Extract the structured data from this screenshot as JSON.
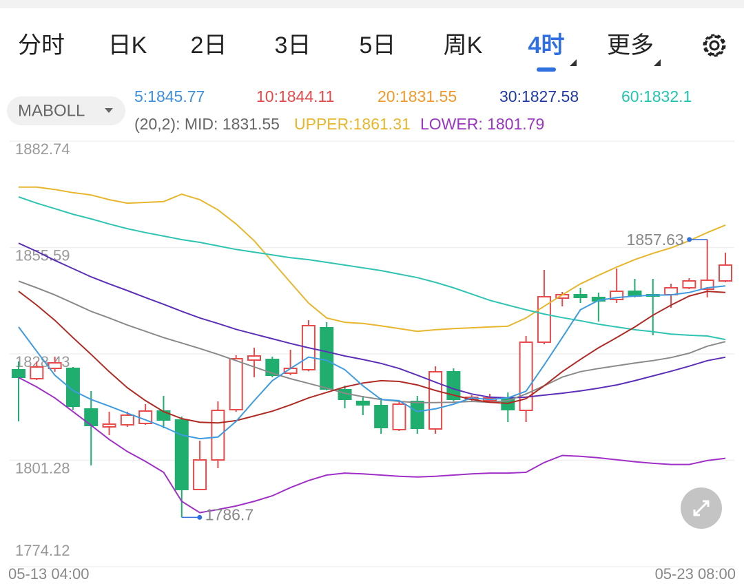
{
  "tabs": [
    "分时",
    "日K",
    "2日",
    "3日",
    "5日",
    "周K",
    "4时",
    "更多"
  ],
  "selected_tab": 6,
  "indicator_menu": "MABOLL",
  "ma_legend": [
    {
      "text": "5:1845.77",
      "color": "#3d8fdc"
    },
    {
      "text": "10:1844.11",
      "color": "#e04a4a"
    },
    {
      "text": "20:1831.55",
      "color": "#f0982a"
    },
    {
      "text": "30:1827.58",
      "color": "#1f3aa6"
    },
    {
      "text": "60:1832.1",
      "color": "#22c4b0"
    }
  ],
  "boll_legend": [
    {
      "text": "(20,2): MID: 1831.55",
      "color": "#666666"
    },
    {
      "text": "UPPER:1861.31",
      "color": "#e8b52c"
    },
    {
      "text": "LOWER: 1801.79",
      "color": "#9b35c4"
    }
  ],
  "chart_data": {
    "type": "candlestick",
    "categories": [
      "05-13 04:00",
      null,
      null,
      null,
      null,
      null,
      null,
      null,
      null,
      null,
      null,
      null,
      null,
      null,
      null,
      null,
      null,
      null,
      null,
      null,
      null,
      null,
      null,
      null,
      null,
      null,
      null,
      null,
      null,
      null,
      null,
      null,
      null,
      null,
      null,
      null,
      null,
      null,
      null,
      "05-23 08:00"
    ],
    "open": [
      1824.39,
      1822.1,
      1824.74,
      1824.74,
      1814.37,
      1809.8,
      1810.33,
      1810.68,
      1813.84,
      1811.56,
      1793.81,
      1801.36,
      1814.19,
      1826.85,
      1827.02,
      1823.51,
      1824.39,
      1835.11,
      1819.29,
      1816.3,
      1815.25,
      1809.1,
      1816.3,
      1809.27,
      1823.86,
      1816.83,
      1816.48,
      1817.18,
      1814.02,
      1831.42,
      1842.67,
      1843.55,
      1842.84,
      1842.32,
      1844.42,
      1843.55,
      1843.55,
      1845.3,
      1844.95,
      1847.06
    ],
    "high": [
      1826.5,
      1826.5,
      1827.73,
      1825.09,
      1818.94,
      1813.67,
      1813.67,
      1815.6,
      1817.71,
      1812.44,
      1806.28,
      1816.3,
      1828.08,
      1830.01,
      1827.73,
      1829.49,
      1837.04,
      1836.52,
      1820.35,
      1817.71,
      1817.18,
      1816.48,
      1817.71,
      1825.27,
      1824.74,
      1817.89,
      1818.24,
      1818.59,
      1833.0,
      1849.87,
      1844.25,
      1845.3,
      1844.07,
      1850.22,
      1847.59,
      1847.59,
      1846.36,
      1847.76,
      1857.63,
      1854.27
    ],
    "low": [
      1811.21,
      1821.75,
      1823.86,
      1814.19,
      1799.96,
      1807.69,
      1809.8,
      1810.33,
      1809.45,
      1786.7,
      1793.63,
      1799.25,
      1813.67,
      1822.45,
      1822.45,
      1822.98,
      1824.0,
      1819.11,
      1814.55,
      1812.79,
      1808.04,
      1808.75,
      1808.04,
      1808.04,
      1816.3,
      1816.48,
      1815.95,
      1811.03,
      1811.03,
      1830.89,
      1840.56,
      1841.44,
      1836.69,
      1841.44,
      1842.84,
      1833.18,
      1840.21,
      1844.95,
      1842.84,
      1846.71
    ],
    "close": [
      1822.45,
      1825.09,
      1826.15,
      1815.07,
      1810.15,
      1810.5,
      1812.79,
      1813.84,
      1811.56,
      1793.81,
      1801.36,
      1814.02,
      1827.2,
      1827.9,
      1822.98,
      1824.74,
      1835.64,
      1819.47,
      1816.83,
      1815.42,
      1809.62,
      1815.6,
      1809.45,
      1823.86,
      1816.83,
      1817.36,
      1817.18,
      1814.19,
      1831.42,
      1843.02,
      1843.55,
      1842.84,
      1841.96,
      1844.42,
      1843.19,
      1843.19,
      1845.3,
      1847.06,
      1847.24,
      1851.1
    ],
    "up_color": "#e84a4a",
    "down_color": "#1fae6e",
    "series": [
      {
        "color": "#e8b52c",
        "values": [
          1871.0,
          1871.0,
          1870.4,
          1869.6,
          1869.0,
          1867.8,
          1866.9,
          1867.1,
          1867.3,
          1869.2,
          1867.8,
          1865.2,
          1861.6,
          1857.3,
          1852.0,
          1846.7,
          1841.4,
          1837.6,
          1836.5,
          1836.2,
          1835.6,
          1834.9,
          1834.2,
          1834.6,
          1834.9,
          1835.1,
          1835.3,
          1835.5,
          1837.6,
          1840.6,
          1843.5,
          1846.3,
          1848.5,
          1850.6,
          1852.5,
          1854.1,
          1855.5,
          1857.3,
          1859.4,
          1861.31
        ]
      },
      {
        "color": "#2fc4b2",
        "values": [
          1868.5,
          1866.9,
          1865.5,
          1864.1,
          1862.9,
          1861.6,
          1860.4,
          1859.4,
          1858.5,
          1857.6,
          1856.9,
          1856.0,
          1855.1,
          1854.4,
          1853.7,
          1853.0,
          1852.5,
          1851.8,
          1851.1,
          1850.4,
          1849.7,
          1848.8,
          1847.9,
          1846.7,
          1845.3,
          1843.7,
          1842.1,
          1840.9,
          1839.7,
          1838.6,
          1837.7,
          1836.9,
          1836.0,
          1835.3,
          1834.6,
          1834.1,
          1833.5,
          1833.2,
          1833.0,
          1832.1
        ]
      },
      {
        "color": "#5b2fb8",
        "values": [
          1856.7,
          1854.6,
          1852.3,
          1850.2,
          1848.1,
          1846.3,
          1844.6,
          1842.8,
          1841.1,
          1839.3,
          1837.6,
          1836.2,
          1834.7,
          1833.5,
          1832.3,
          1831.1,
          1830.0,
          1829.0,
          1827.9,
          1827.0,
          1826.0,
          1824.7,
          1823.0,
          1821.2,
          1819.5,
          1818.2,
          1817.4,
          1817.2,
          1817.4,
          1817.9,
          1818.4,
          1819.0,
          1819.7,
          1820.5,
          1821.6,
          1822.8,
          1824.0,
          1825.3,
          1826.7,
          1827.58
        ]
      },
      {
        "color": "#8a8a8a",
        "values": [
          1847.0,
          1845.3,
          1843.5,
          1841.4,
          1839.3,
          1837.6,
          1835.8,
          1834.2,
          1832.6,
          1831.2,
          1829.8,
          1828.3,
          1826.7,
          1825.1,
          1823.5,
          1822.1,
          1820.9,
          1819.7,
          1818.4,
          1817.5,
          1816.8,
          1816.3,
          1816.0,
          1816.0,
          1816.1,
          1816.3,
          1816.1,
          1816.5,
          1818.2,
          1820.3,
          1822.5,
          1823.9,
          1824.7,
          1825.4,
          1826.1,
          1826.7,
          1827.5,
          1828.6,
          1830.4,
          1831.55
        ]
      },
      {
        "color": "#b02a24",
        "values": [
          1844.4,
          1840.9,
          1837.0,
          1832.6,
          1828.3,
          1823.9,
          1819.8,
          1816.5,
          1813.7,
          1811.9,
          1811.0,
          1810.8,
          1811.4,
          1812.6,
          1813.8,
          1815.4,
          1817.2,
          1818.6,
          1820.0,
          1821.0,
          1821.6,
          1821.4,
          1820.5,
          1819.1,
          1817.9,
          1816.8,
          1816.1,
          1815.8,
          1817.0,
          1820.3,
          1823.9,
          1827.0,
          1830.0,
          1832.6,
          1835.3,
          1838.3,
          1840.9,
          1843.2,
          1844.4,
          1844.11
        ]
      },
      {
        "color": "#3d9be0",
        "values": [
          1835.3,
          1829.1,
          1823.0,
          1819.1,
          1816.8,
          1815.1,
          1813.3,
          1811.6,
          1809.8,
          1807.7,
          1806.8,
          1807.2,
          1811.2,
          1816.5,
          1821.6,
          1824.7,
          1827.6,
          1826.8,
          1824.4,
          1820.3,
          1816.8,
          1816.5,
          1813.7,
          1814.4,
          1815.6,
          1817.2,
          1816.8,
          1817.2,
          1818.9,
          1825.6,
          1832.6,
          1839.7,
          1842.1,
          1842.8,
          1843.2,
          1843.4,
          1843.5,
          1844.1,
          1845.3,
          1845.77
        ]
      },
      {
        "color": "#a02fc8",
        "values": [
          1822.4,
          1820.0,
          1817.2,
          1813.7,
          1810.2,
          1806.6,
          1803.5,
          1801.0,
          1798.2,
          1790.8,
          1787.9,
          1788.7,
          1789.6,
          1790.8,
          1792.2,
          1794.3,
          1796.1,
          1797.5,
          1798.0,
          1797.8,
          1797.5,
          1797.2,
          1797.0,
          1797.2,
          1797.5,
          1797.8,
          1798.0,
          1798.0,
          1798.2,
          1800.7,
          1802.5,
          1802.3,
          1801.9,
          1801.4,
          1800.9,
          1800.5,
          1800.2,
          1800.2,
          1801.2,
          1801.79
        ]
      }
    ],
    "max_label": "1857.63",
    "min_label": "1786.7",
    "ylim": [
      1774.12,
      1882.74
    ],
    "yticks": [
      1882.74,
      1855.59,
      1828.43,
      1801.28,
      1774.12
    ],
    "grid": true
  }
}
